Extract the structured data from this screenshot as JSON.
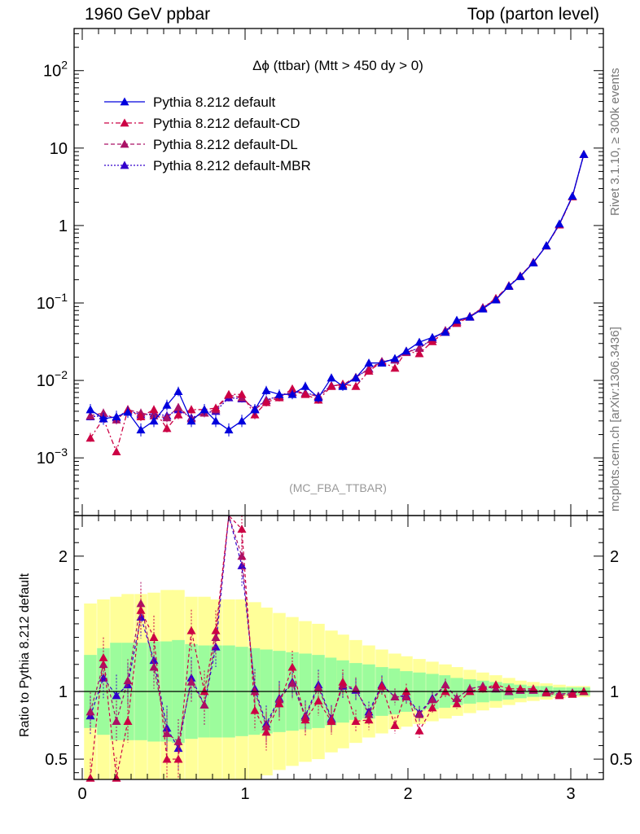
{
  "header": {
    "left": "1960 GeV ppbar",
    "right": "Top (parton level)"
  },
  "side": {
    "rivet": "Rivet 3.1.10, ≥ 300k events",
    "mcplots": "mcplots.cern.ch [arXiv:1306.3436]"
  },
  "ratio_ylabel": "Ratio to Pythia 8.212 default",
  "watermark": "(MC_FBA_TTBAR)",
  "chart_data": [
    {
      "type": "line",
      "title": "Δϕ (ttbar) (Mtt > 450 dy > 0)",
      "xlabel": "",
      "ylabel": "",
      "yscale": "log",
      "xlim": [
        -0.05,
        3.2
      ],
      "ylim": [
        0.00018,
        350
      ],
      "xticks": [
        "0",
        "1",
        "2",
        "3"
      ],
      "yticks": [
        {
          "v": 0.001,
          "label": "10^-3"
        },
        {
          "v": 0.01,
          "label": "10^-2"
        },
        {
          "v": 0.1,
          "label": "10^-1"
        },
        {
          "v": 1,
          "label": "1"
        },
        {
          "v": 10,
          "label": "10"
        },
        {
          "v": 100,
          "label": "10^2"
        }
      ],
      "legend_position": "top-left",
      "x": [
        0.05,
        0.13,
        0.21,
        0.28,
        0.36,
        0.44,
        0.52,
        0.59,
        0.67,
        0.75,
        0.82,
        0.9,
        0.98,
        1.06,
        1.13,
        1.21,
        1.29,
        1.37,
        1.45,
        1.53,
        1.6,
        1.68,
        1.76,
        1.84,
        1.92,
        1.99,
        2.07,
        2.15,
        2.23,
        2.3,
        2.38,
        2.46,
        2.54,
        2.62,
        2.69,
        2.77,
        2.85,
        2.93,
        3.01,
        3.08
      ],
      "series": [
        {
          "name": "Pythia 8.212 default",
          "color": "#0000dd",
          "style": "solid",
          "values": [
            0.0042,
            0.0032,
            0.0034,
            0.0039,
            0.0023,
            0.003,
            0.0048,
            0.0072,
            0.003,
            0.0042,
            0.003,
            0.0023,
            0.003,
            0.0042,
            0.0074,
            0.0066,
            0.0066,
            0.0084,
            0.006,
            0.0108,
            0.0084,
            0.0108,
            0.0168,
            0.0168,
            0.0192,
            0.024,
            0.0312,
            0.036,
            0.042,
            0.06,
            0.066,
            0.084,
            0.11,
            0.165,
            0.22,
            0.33,
            0.55,
            1.05,
            2.4,
            8.3
          ]
        },
        {
          "name": "Pythia 8.212 default-CD",
          "color": "#cc0044",
          "style": "dashdot",
          "values": [
            0.0018,
            0.0032,
            0.0012,
            0.0042,
            0.0034,
            0.0042,
            0.0024,
            0.0036,
            0.0042,
            0.0042,
            0.0044,
            0.0066,
            0.0066,
            0.0036,
            0.0052,
            0.006,
            0.0078,
            0.0066,
            0.0056,
            0.0084,
            0.009,
            0.0084,
            0.0132,
            0.0174,
            0.0144,
            0.024,
            0.0222,
            0.0318,
            0.042,
            0.0546,
            0.066,
            0.086,
            0.115,
            0.168,
            0.224,
            0.336,
            0.546,
            1.02,
            2.35,
            8.3
          ]
        },
        {
          "name": "Pythia 8.212 default-DL",
          "color": "#aa1166",
          "style": "dashed",
          "values": [
            0.0035,
            0.0038,
            0.0031,
            0.0042,
            0.0038,
            0.0035,
            0.0033,
            0.0045,
            0.0032,
            0.0038,
            0.0042,
            0.0065,
            0.006,
            0.0042,
            0.0055,
            0.0062,
            0.007,
            0.0068,
            0.0062,
            0.0085,
            0.0088,
            0.011,
            0.014,
            0.0175,
            0.0185,
            0.023,
            0.026,
            0.034,
            0.044,
            0.057,
            0.067,
            0.087,
            0.112,
            0.165,
            0.222,
            0.334,
            0.548,
            1.03,
            2.38,
            8.3
          ]
        },
        {
          "name": "Pythia 8.212 default-MBR",
          "color": "#3300cc",
          "style": "dotted",
          "values": [
            0.0034,
            0.0035,
            0.0033,
            0.0041,
            0.0036,
            0.0037,
            0.0035,
            0.0042,
            0.0033,
            0.0038,
            0.004,
            0.006,
            0.0058,
            0.0043,
            0.0056,
            0.0063,
            0.0071,
            0.0069,
            0.0063,
            0.0086,
            0.0087,
            0.0109,
            0.0142,
            0.0176,
            0.0184,
            0.0232,
            0.0262,
            0.0342,
            0.0442,
            0.0572,
            0.0672,
            0.0872,
            0.1122,
            0.1652,
            0.2222,
            0.3342,
            0.5482,
            1.032,
            2.382,
            8.31
          ]
        }
      ]
    },
    {
      "type": "line",
      "title": "",
      "ylabel": "Ratio to Pythia 8.212 default",
      "ylim": [
        0.35,
        2.3
      ],
      "yticks": [
        {
          "v": 0.5,
          "label": "0.5"
        },
        {
          "v": 1,
          "label": "1"
        },
        {
          "v": 2,
          "label": "2"
        }
      ],
      "xticks": [
        "0",
        "1",
        "2",
        "3"
      ],
      "x": [
        0.05,
        0.13,
        0.21,
        0.28,
        0.36,
        0.44,
        0.52,
        0.59,
        0.67,
        0.75,
        0.82,
        0.9,
        0.98,
        1.06,
        1.13,
        1.21,
        1.29,
        1.37,
        1.45,
        1.53,
        1.6,
        1.68,
        1.76,
        1.84,
        1.92,
        1.99,
        2.07,
        2.15,
        2.23,
        2.3,
        2.38,
        2.46,
        2.54,
        2.62,
        2.69,
        2.77,
        2.85,
        2.93,
        3.01,
        3.08
      ],
      "band_inner": [
        0.27,
        0.32,
        0.36,
        0.36,
        0.36,
        0.37,
        0.37,
        0.38,
        0.35,
        0.34,
        0.34,
        0.34,
        0.33,
        0.32,
        0.31,
        0.3,
        0.29,
        0.28,
        0.27,
        0.25,
        0.23,
        0.21,
        0.2,
        0.18,
        0.17,
        0.15,
        0.14,
        0.13,
        0.12,
        0.1,
        0.09,
        0.08,
        0.07,
        0.06,
        0.05,
        0.04,
        0.04,
        0.03,
        0.03,
        0.03
      ],
      "band_outer": [
        0.65,
        0.68,
        0.7,
        0.72,
        0.72,
        0.73,
        0.75,
        0.75,
        0.7,
        0.7,
        0.68,
        0.68,
        0.68,
        0.66,
        0.62,
        0.58,
        0.55,
        0.52,
        0.5,
        0.45,
        0.42,
        0.38,
        0.34,
        0.31,
        0.28,
        0.26,
        0.24,
        0.22,
        0.2,
        0.18,
        0.16,
        0.14,
        0.12,
        0.1,
        0.08,
        0.07,
        0.06,
        0.05,
        0.04,
        0.04
      ],
      "band_colors": {
        "inner": "#9cfc9c",
        "outer": "#ffff99"
      },
      "series": [
        {
          "name": "Pythia 8.212 default-CD",
          "color": "#cc0044",
          "values": [
            0.36,
            1.25,
            0.36,
            0.78,
            1.6,
            1.4,
            0.5,
            0.5,
            1.45,
            1.0,
            1.45,
            2.8,
            2.2,
            0.86,
            0.7,
            0.91,
            1.18,
            0.79,
            0.93,
            0.78,
            1.07,
            0.78,
            0.79,
            1.04,
            0.75,
            1.0,
            0.71,
            0.88,
            1.0,
            0.91,
            1.0,
            1.02,
            1.05,
            1.02,
            1.02,
            1.02,
            0.99,
            0.97,
            0.98,
            1.0
          ]
        },
        {
          "name": "Pythia 8.212 default-DL",
          "color": "#aa1166",
          "values": [
            0.85,
            1.2,
            0.78,
            1.08,
            1.65,
            1.18,
            0.69,
            0.63,
            1.07,
            0.9,
            1.4,
            2.8,
            2.0,
            1.0,
            0.74,
            0.94,
            1.06,
            0.81,
            1.03,
            0.79,
            1.05,
            1.02,
            0.83,
            1.04,
            0.96,
            0.96,
            0.83,
            0.94,
            1.05,
            0.95,
            1.02,
            1.04,
            1.02,
            1.0,
            1.01,
            1.01,
            1.0,
            0.98,
            0.99,
            1.0
          ]
        },
        {
          "name": "Pythia 8.212 default-MBR",
          "color": "#3300cc",
          "values": [
            0.82,
            1.1,
            0.97,
            1.05,
            1.55,
            1.23,
            0.73,
            0.58,
            1.1,
            0.9,
            1.33,
            2.6,
            1.93,
            1.02,
            0.76,
            0.95,
            1.07,
            0.82,
            1.05,
            0.8,
            1.04,
            1.01,
            0.85,
            1.05,
            0.96,
            0.97,
            0.84,
            0.95,
            1.05,
            0.95,
            1.02,
            1.04,
            1.02,
            1.0,
            1.01,
            1.01,
            1.0,
            0.98,
            0.99,
            1.0
          ]
        }
      ]
    }
  ]
}
